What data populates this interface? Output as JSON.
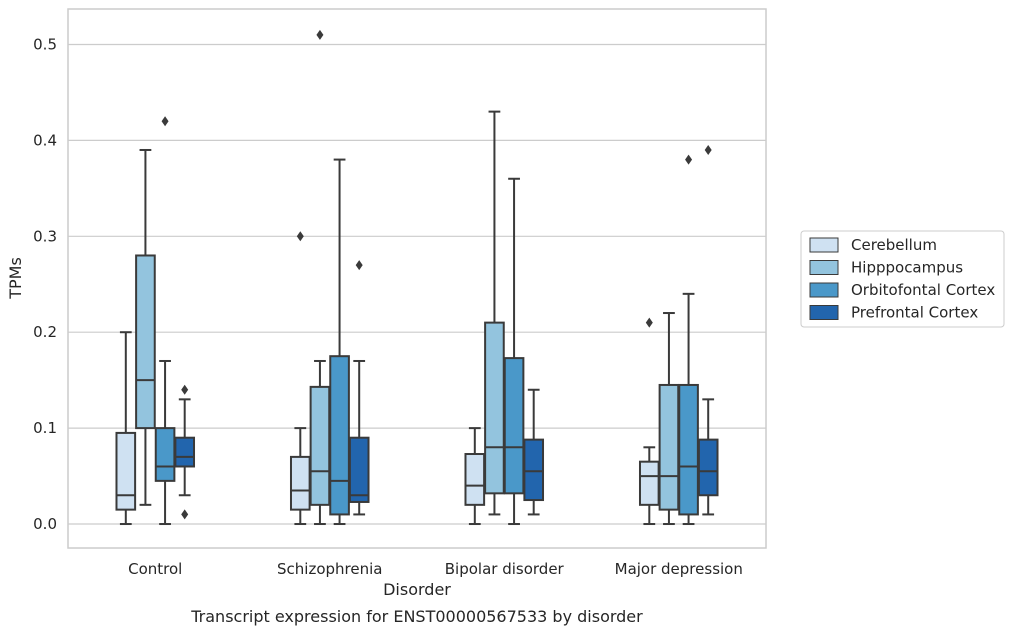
{
  "chart_data": {
    "type": "box",
    "title": "Transcript expression for ENST00000567533 by disorder",
    "xlabel": "Disorder",
    "ylabel": "TPMs",
    "ylim": [
      -0.025,
      0.537
    ],
    "yticks": [
      0.0,
      0.1,
      0.2,
      0.3,
      0.4,
      0.5
    ],
    "ytick_labels": [
      "0.0",
      "0.1",
      "0.2",
      "0.3",
      "0.4",
      "0.5"
    ],
    "grid": "horizontal",
    "legend_position": "right",
    "categories": [
      "Control",
      "Schizophrenia",
      "Bipolar disorder",
      "Major depression"
    ],
    "series": [
      {
        "name": "Cerebellum",
        "color": "#cfe1f2",
        "boxes": [
          {
            "whislo": 0.0,
            "q1": 0.015,
            "median": 0.03,
            "q3": 0.095,
            "whishi": 0.2,
            "fliers": []
          },
          {
            "whislo": 0.0,
            "q1": 0.015,
            "median": 0.035,
            "q3": 0.07,
            "whishi": 0.1,
            "fliers": [
              0.3
            ]
          },
          {
            "whislo": 0.0,
            "q1": 0.02,
            "median": 0.04,
            "q3": 0.073,
            "whishi": 0.1,
            "fliers": []
          },
          {
            "whislo": 0.0,
            "q1": 0.02,
            "median": 0.05,
            "q3": 0.065,
            "whishi": 0.08,
            "fliers": [
              0.21
            ]
          }
        ]
      },
      {
        "name": "Hipppocampus",
        "color": "#93c4de",
        "boxes": [
          {
            "whislo": 0.02,
            "q1": 0.1,
            "median": 0.15,
            "q3": 0.28,
            "whishi": 0.39,
            "fliers": []
          },
          {
            "whislo": 0.0,
            "q1": 0.02,
            "median": 0.055,
            "q3": 0.143,
            "whishi": 0.17,
            "fliers": [
              0.51
            ]
          },
          {
            "whislo": 0.01,
            "q1": 0.032,
            "median": 0.08,
            "q3": 0.21,
            "whishi": 0.43,
            "fliers": []
          },
          {
            "whislo": 0.0,
            "q1": 0.015,
            "median": 0.05,
            "q3": 0.145,
            "whishi": 0.22,
            "fliers": []
          }
        ]
      },
      {
        "name": "Orbitofontal Cortex",
        "color": "#4a98c9",
        "boxes": [
          {
            "whislo": 0.0,
            "q1": 0.045,
            "median": 0.06,
            "q3": 0.1,
            "whishi": 0.17,
            "fliers": [
              0.42
            ]
          },
          {
            "whislo": 0.0,
            "q1": 0.01,
            "median": 0.045,
            "q3": 0.175,
            "whishi": 0.38,
            "fliers": []
          },
          {
            "whislo": 0.0,
            "q1": 0.032,
            "median": 0.08,
            "q3": 0.173,
            "whishi": 0.36,
            "fliers": []
          },
          {
            "whislo": 0.0,
            "q1": 0.01,
            "median": 0.06,
            "q3": 0.145,
            "whishi": 0.24,
            "fliers": [
              0.38
            ]
          }
        ]
      },
      {
        "name": "Prefrontal Cortex",
        "color": "#2265ad",
        "boxes": [
          {
            "whislo": 0.03,
            "q1": 0.06,
            "median": 0.07,
            "q3": 0.09,
            "whishi": 0.13,
            "fliers": [
              0.14,
              0.01
            ]
          },
          {
            "whislo": 0.01,
            "q1": 0.023,
            "median": 0.03,
            "q3": 0.09,
            "whishi": 0.17,
            "fliers": [
              0.27
            ]
          },
          {
            "whislo": 0.01,
            "q1": 0.025,
            "median": 0.055,
            "q3": 0.088,
            "whishi": 0.14,
            "fliers": []
          },
          {
            "whislo": 0.01,
            "q1": 0.03,
            "median": 0.055,
            "q3": 0.088,
            "whishi": 0.13,
            "fliers": [
              0.39
            ]
          }
        ]
      }
    ]
  }
}
